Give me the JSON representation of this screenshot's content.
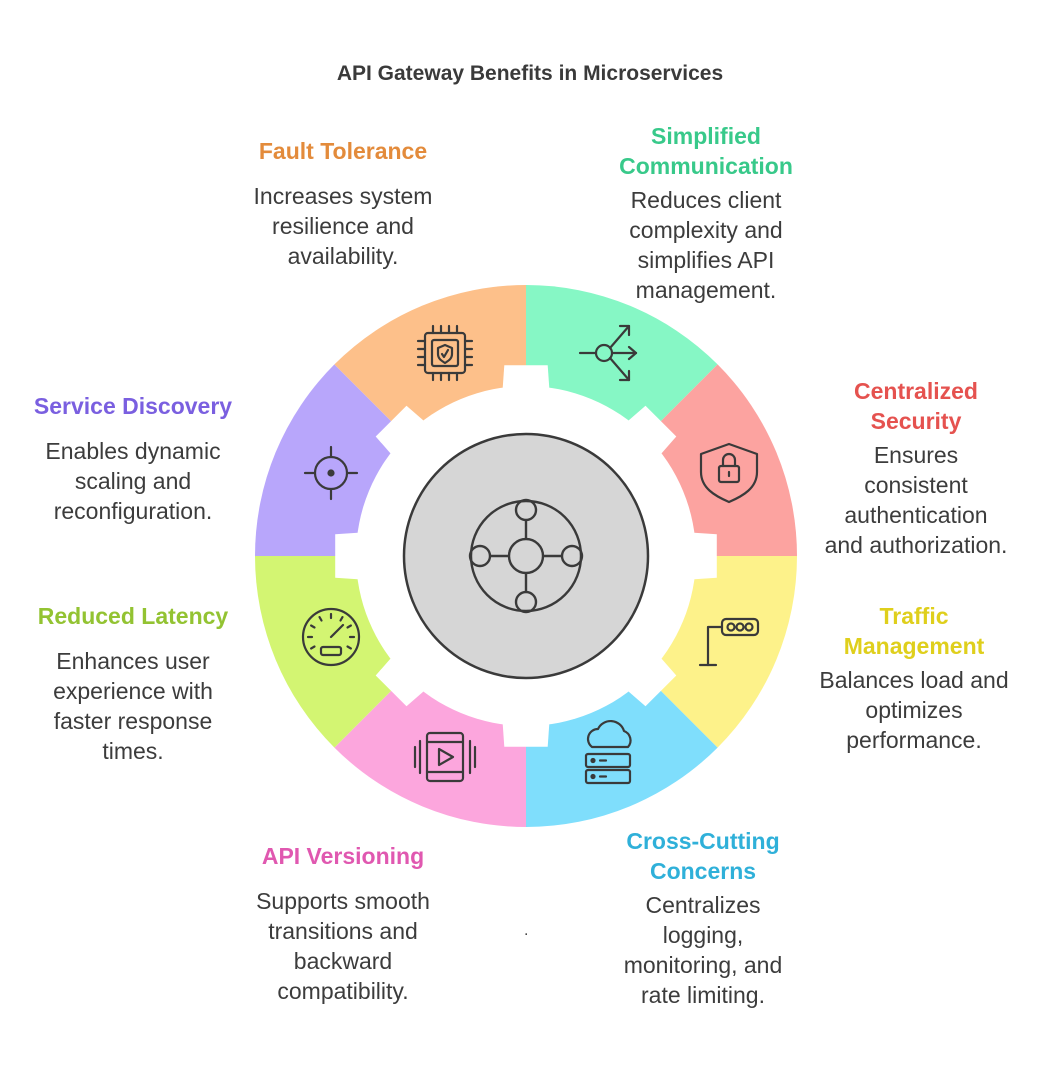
{
  "title": "API Gateway Benefits in Microservices",
  "hub": {
    "icon": "network-hub-icon"
  },
  "segments": [
    {
      "key": "simplified",
      "title": "Simplified\nCommunication",
      "desc": "Reduces client\ncomplexity and\nsimplifies API\nmanagement.",
      "fill": "#86f7c5",
      "title_color": "#38c98a",
      "icon": "branch-arrows-icon"
    },
    {
      "key": "security",
      "title": "Centralized\nSecurity",
      "desc": "Ensures\nconsistent\nauthentication\nand authorization.",
      "fill": "#fca3a0",
      "title_color": "#e5524f",
      "icon": "padlock-shield-icon"
    },
    {
      "key": "traffic",
      "title": "Traffic\nManagement",
      "desc": "Balances load and\noptimizes\nperformance.",
      "fill": "#fdf28a",
      "title_color": "#dfcf1c",
      "icon": "traffic-light-icon"
    },
    {
      "key": "crosscutting",
      "title": "Cross-Cutting\nConcerns",
      "desc": "Centralizes\nlogging,\nmonitoring, and\nrate limiting.",
      "fill": "#7fdefc",
      "title_color": "#2fb0d9",
      "icon": "cloud-server-icon"
    },
    {
      "key": "versioning",
      "title": "API Versioning",
      "desc": "Supports smooth\ntransitions and\nbackward\ncompatibility.",
      "fill": "#fca6dd",
      "title_color": "#e058b0",
      "icon": "video-play-icon"
    },
    {
      "key": "latency",
      "title": "Reduced Latency",
      "desc": "Enhances user\nexperience with\nfaster response\ntimes.",
      "fill": "#d3f572",
      "title_color": "#93c332",
      "icon": "speedometer-icon"
    },
    {
      "key": "discovery",
      "title": "Service Discovery",
      "desc": "Enables dynamic\nscaling and\nreconfiguration.",
      "fill": "#b8a6fb",
      "title_color": "#7a5fe0",
      "icon": "crosshair-icon"
    },
    {
      "key": "fault",
      "title": "Fault Tolerance",
      "desc": "Increases system\nresilience and\navailability.",
      "fill": "#fdc08a",
      "title_color": "#e38b3b",
      "icon": "chip-shield-icon"
    }
  ],
  "stray_mark": "."
}
